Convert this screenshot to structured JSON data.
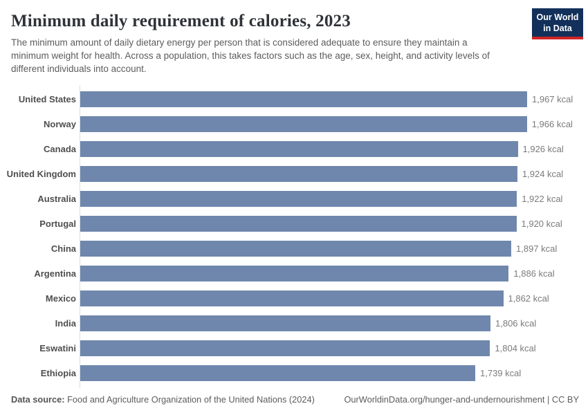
{
  "header": {
    "title": "Minimum daily requirement of calories, 2023",
    "subtitle": "The minimum amount of daily dietary energy per person that is considered adequate to ensure they maintain a minimum weight for health. Across a population, this takes factors such as the age, sex, height, and activity levels of different individuals into account.",
    "logo": {
      "line1": "Our World",
      "line2": "in Data",
      "bg_color": "#12305a",
      "accent_color": "#cf2427"
    }
  },
  "chart_data": {
    "type": "bar",
    "orientation": "horizontal",
    "title": "Minimum daily requirement of calories, 2023",
    "unit": "kcal",
    "categories": [
      "United States",
      "Norway",
      "Canada",
      "United Kingdom",
      "Australia",
      "Portugal",
      "China",
      "Argentina",
      "Mexico",
      "India",
      "Eswatini",
      "Ethiopia"
    ],
    "values": [
      1967,
      1966,
      1926,
      1924,
      1922,
      1920,
      1897,
      1886,
      1862,
      1806,
      1804,
      1739
    ],
    "value_labels": [
      "1,967 kcal",
      "1,966 kcal",
      "1,926 kcal",
      "1,924 kcal",
      "1,922 kcal",
      "1,920 kcal",
      "1,897 kcal",
      "1,886 kcal",
      "1,862 kcal",
      "1,806 kcal",
      "1,804 kcal",
      "1,739 kcal"
    ],
    "bar_color": "#6f87ad",
    "xlim": [
      0,
      1967
    ],
    "grid": false,
    "legend": false,
    "axis_line_color": "#dcdcdc"
  },
  "footer": {
    "source_label": "Data source:",
    "source_text": "Food and Agriculture Organization of the United Nations (2024)",
    "url_text": "OurWorldinData.org/hunger-and-undernourishment",
    "license_text": "| CC BY"
  }
}
